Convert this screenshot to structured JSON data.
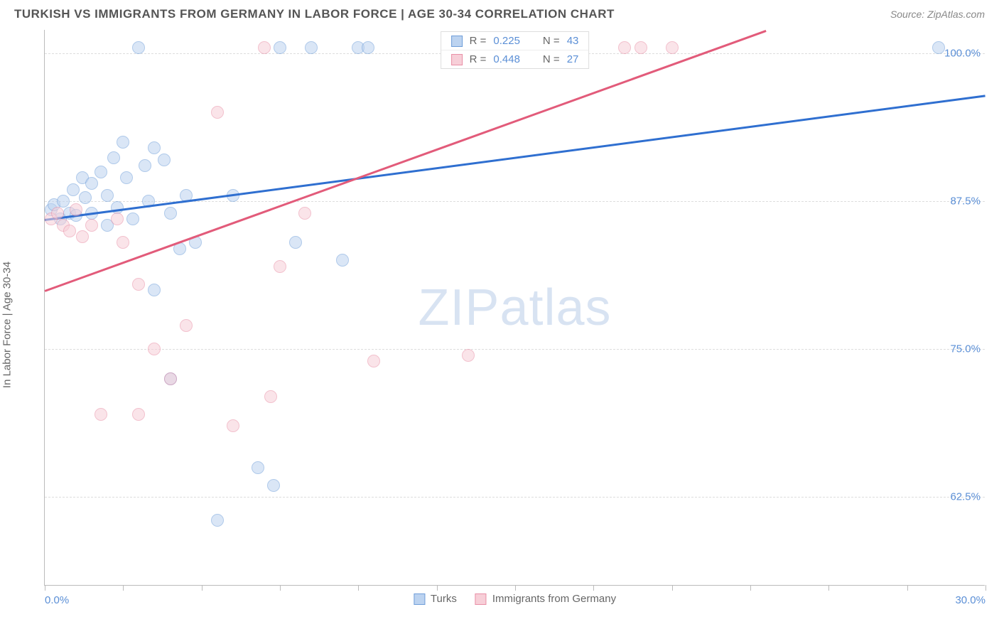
{
  "header": {
    "title": "TURKISH VS IMMIGRANTS FROM GERMANY IN LABOR FORCE | AGE 30-34 CORRELATION CHART",
    "source": "Source: ZipAtlas.com"
  },
  "chart": {
    "type": "scatter",
    "ylabel": "In Labor Force | Age 30-34",
    "watermark": "ZIPatlas",
    "background_color": "#ffffff",
    "grid_color": "#dddddd",
    "axis_color": "#bbbbbb",
    "tick_label_color": "#5b8fd6",
    "ylabel_color": "#666666",
    "xlim": [
      0,
      30
    ],
    "ylim": [
      55,
      102
    ],
    "xtick_positions": [
      0,
      2.5,
      5,
      7.5,
      10,
      12.5,
      15,
      17.5,
      20,
      22.5,
      25,
      27.5,
      30
    ],
    "xtick_labels": {
      "0": "0.0%",
      "30": "30.0%"
    },
    "ygrid": [
      {
        "v": 62.5,
        "label": "62.5%"
      },
      {
        "v": 75.0,
        "label": "75.0%"
      },
      {
        "v": 87.5,
        "label": "87.5%"
      },
      {
        "v": 100.0,
        "label": "100.0%"
      }
    ],
    "series": [
      {
        "key": "turks",
        "label": "Turks",
        "fill": "#bcd3f0",
        "stroke": "#6f9ed9",
        "line_color": "#2f6fd0",
        "r_value": "0.225",
        "n_value": "43",
        "trend": {
          "x1": 0,
          "y1": 86.0,
          "x2": 30,
          "y2": 96.5
        },
        "points": [
          [
            0.2,
            86.8
          ],
          [
            0.3,
            87.2
          ],
          [
            0.5,
            86.0
          ],
          [
            0.6,
            87.5
          ],
          [
            0.8,
            86.5
          ],
          [
            0.9,
            88.5
          ],
          [
            1.0,
            86.3
          ],
          [
            1.2,
            89.5
          ],
          [
            1.3,
            87.8
          ],
          [
            1.5,
            89.0
          ],
          [
            1.5,
            86.5
          ],
          [
            1.8,
            90.0
          ],
          [
            2.0,
            88.0
          ],
          [
            2.0,
            85.5
          ],
          [
            2.2,
            91.2
          ],
          [
            2.3,
            87.0
          ],
          [
            2.5,
            92.5
          ],
          [
            2.6,
            89.5
          ],
          [
            2.8,
            86.0
          ],
          [
            3.0,
            100.5
          ],
          [
            3.2,
            90.5
          ],
          [
            3.3,
            87.5
          ],
          [
            3.5,
            92.0
          ],
          [
            3.5,
            80.0
          ],
          [
            3.8,
            91.0
          ],
          [
            4.0,
            86.5
          ],
          [
            4.0,
            72.5
          ],
          [
            4.3,
            83.5
          ],
          [
            4.5,
            88.0
          ],
          [
            4.8,
            84.0
          ],
          [
            5.5,
            60.5
          ],
          [
            6.0,
            88.0
          ],
          [
            6.8,
            65.0
          ],
          [
            7.3,
            63.5
          ],
          [
            7.5,
            100.5
          ],
          [
            8.0,
            84.0
          ],
          [
            8.5,
            100.5
          ],
          [
            9.5,
            82.5
          ],
          [
            10.0,
            100.5
          ],
          [
            10.3,
            100.5
          ],
          [
            14.5,
            100.5
          ],
          [
            17.0,
            100.5
          ],
          [
            28.5,
            100.5
          ]
        ]
      },
      {
        "key": "germany",
        "label": "Immigants from Germany",
        "label_display": "Immigrants from Germany",
        "fill": "#f7cfd8",
        "stroke": "#e98fa6",
        "line_color": "#e25b7a",
        "r_value": "0.448",
        "n_value": "27",
        "trend": {
          "x1": 0,
          "y1": 80.0,
          "x2": 23,
          "y2": 102.0
        },
        "points": [
          [
            0.2,
            86.0
          ],
          [
            0.4,
            86.5
          ],
          [
            0.6,
            85.5
          ],
          [
            0.8,
            85.0
          ],
          [
            1.0,
            86.8
          ],
          [
            1.2,
            84.5
          ],
          [
            1.5,
            85.5
          ],
          [
            1.8,
            69.5
          ],
          [
            2.3,
            86.0
          ],
          [
            2.5,
            84.0
          ],
          [
            3.0,
            80.5
          ],
          [
            3.0,
            69.5
          ],
          [
            3.5,
            75.0
          ],
          [
            4.0,
            72.5
          ],
          [
            4.5,
            77.0
          ],
          [
            5.5,
            95.0
          ],
          [
            6.0,
            68.5
          ],
          [
            7.0,
            100.5
          ],
          [
            7.2,
            71.0
          ],
          [
            7.5,
            82.0
          ],
          [
            8.3,
            86.5
          ],
          [
            10.5,
            74.0
          ],
          [
            13.5,
            74.5
          ],
          [
            15.0,
            100.5
          ],
          [
            18.5,
            100.5
          ],
          [
            19.0,
            100.5
          ],
          [
            20.0,
            100.5
          ]
        ]
      }
    ],
    "legend_top": {
      "r_label": "R =",
      "n_label": "N ="
    }
  }
}
